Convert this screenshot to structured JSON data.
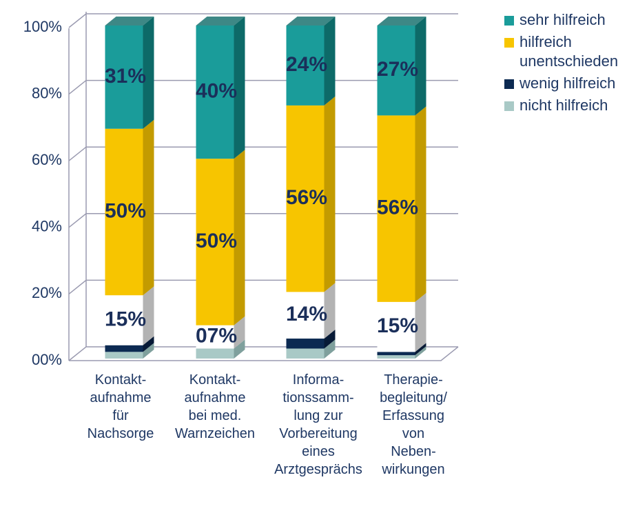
{
  "chart_data": {
    "type": "bar3d_stacked",
    "categories": [
      "Kontakt-\naufnahme\nfür\nNachsorge",
      "Kontakt-\naufnahme\nbei med.\nWarnzeichen",
      "Informa-\ntionssamm-\nlung zur\nVorbereitung\neines\nArztgesprächs",
      "Therapie-\nbegleitung/\nErfassung\nvon\nNeben-\nwirkungen"
    ],
    "series": [
      {
        "name": "nicht hilfreich",
        "color": "#a9c9c6",
        "side": "#7fa09d",
        "values": [
          2,
          3,
          3,
          1
        ]
      },
      {
        "name": "wenig hilfreich",
        "color": "#0c2a52",
        "side": "#071a36",
        "values": [
          2,
          0,
          3,
          1
        ]
      },
      {
        "name": "unentschieden",
        "color": "#ffffff",
        "side": "#b3b3b3",
        "values": [
          15,
          7,
          14,
          15
        ],
        "value_labels": [
          "15%",
          "07%",
          "14%",
          "15%"
        ]
      },
      {
        "name": "hilfreich",
        "color": "#f7c500",
        "side": "#c39b00",
        "values": [
          50,
          50,
          56,
          56
        ],
        "value_labels": [
          "50%",
          "50%",
          "56%",
          "56%"
        ]
      },
      {
        "name": "sehr hilfreich",
        "color": "#1a9c9a",
        "side": "#0d6a68",
        "values": [
          31,
          40,
          24,
          27
        ],
        "value_labels": [
          "31%",
          "40%",
          "24%",
          "27%"
        ]
      }
    ],
    "legend_order": [
      4,
      3,
      2,
      1,
      0
    ],
    "ylim": [
      0,
      100
    ],
    "yticks": [
      {
        "value": 0,
        "label": "00%"
      },
      {
        "value": 20,
        "label": "20%"
      },
      {
        "value": 40,
        "label": "40%"
      },
      {
        "value": 60,
        "label": "60%"
      },
      {
        "value": 80,
        "label": "80%"
      },
      {
        "value": 100,
        "label": "100%"
      }
    ],
    "grid": true
  }
}
